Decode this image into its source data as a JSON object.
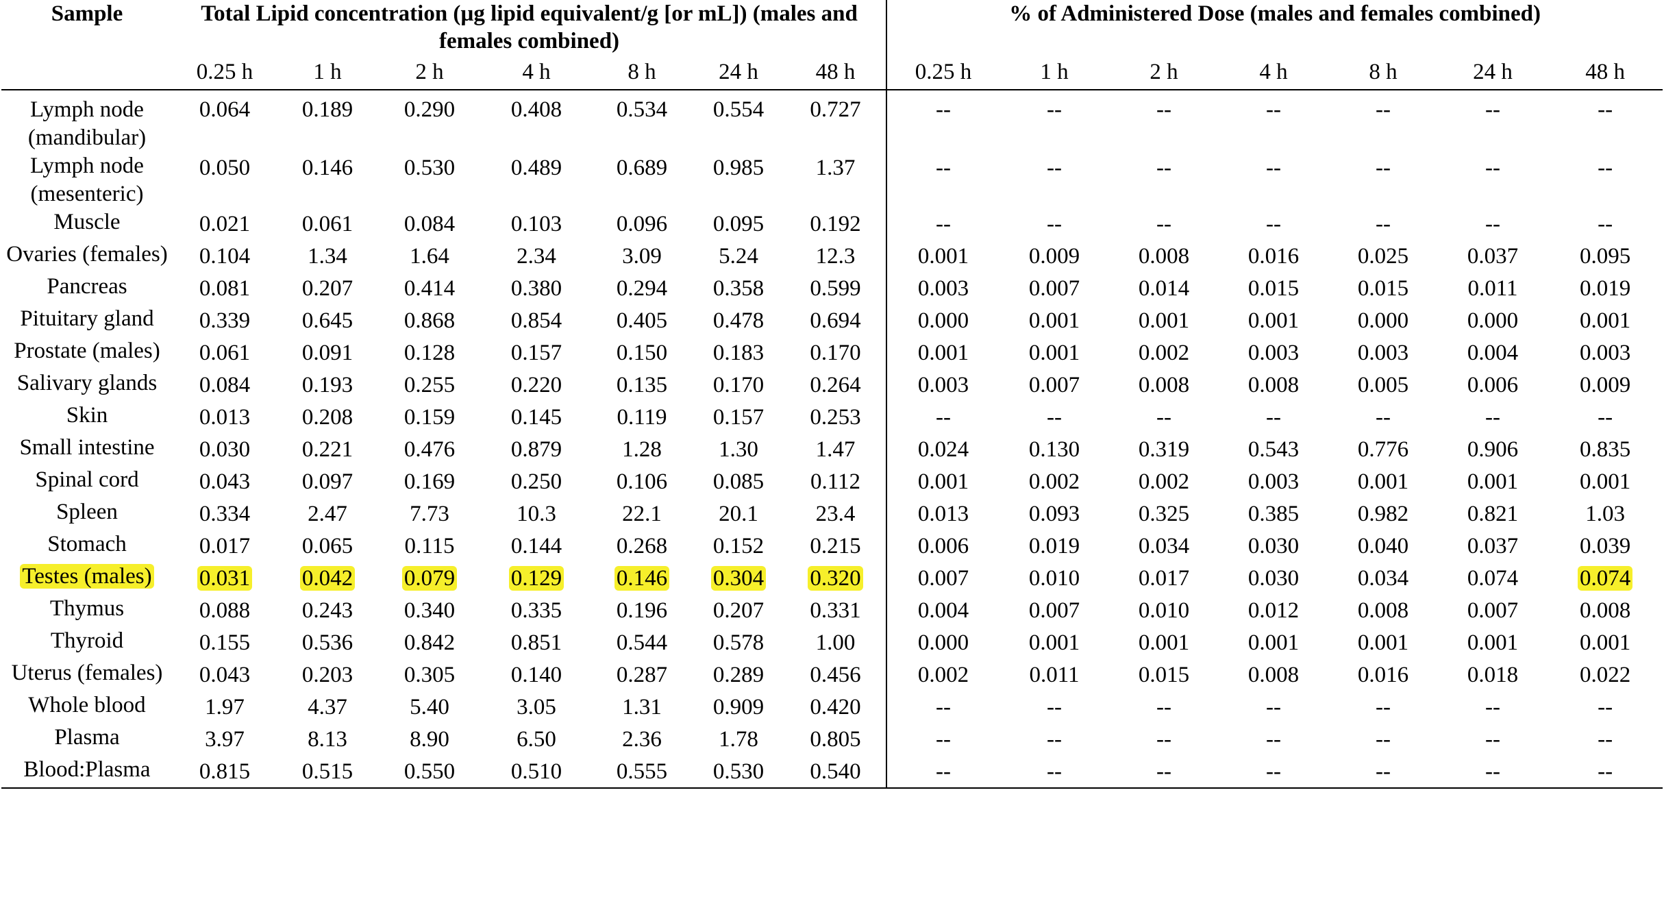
{
  "table": {
    "header": {
      "sample_label": "Sample",
      "group_left": "Total Lipid concentration (µg lipid equivalent/g [or mL]) (males and females combined)",
      "group_right": "% of Administered Dose (males and females combined)",
      "timepoints": [
        "0.25 h",
        "1 h",
        "2 h",
        "4 h",
        "8 h",
        "24 h",
        "48 h"
      ]
    },
    "highlight_color": "#f6ef2b",
    "rows": [
      {
        "sample": "Lymph node (mandibular)",
        "conc": [
          "0.064",
          "0.189",
          "0.290",
          "0.408",
          "0.534",
          "0.554",
          "0.727"
        ],
        "dose": [
          "--",
          "--",
          "--",
          "--",
          "--",
          "--",
          "--"
        ]
      },
      {
        "sample": "Lymph node (mesenteric)",
        "conc": [
          "0.050",
          "0.146",
          "0.530",
          "0.489",
          "0.689",
          "0.985",
          "1.37"
        ],
        "dose": [
          "--",
          "--",
          "--",
          "--",
          "--",
          "--",
          "--"
        ]
      },
      {
        "sample": "Muscle",
        "conc": [
          "0.021",
          "0.061",
          "0.084",
          "0.103",
          "0.096",
          "0.095",
          "0.192"
        ],
        "dose": [
          "--",
          "--",
          "--",
          "--",
          "--",
          "--",
          "--"
        ]
      },
      {
        "sample": "Ovaries (females)",
        "conc": [
          "0.104",
          "1.34",
          "1.64",
          "2.34",
          "3.09",
          "5.24",
          "12.3"
        ],
        "dose": [
          "0.001",
          "0.009",
          "0.008",
          "0.016",
          "0.025",
          "0.037",
          "0.095"
        ]
      },
      {
        "sample": "Pancreas",
        "conc": [
          "0.081",
          "0.207",
          "0.414",
          "0.380",
          "0.294",
          "0.358",
          "0.599"
        ],
        "dose": [
          "0.003",
          "0.007",
          "0.014",
          "0.015",
          "0.015",
          "0.011",
          "0.019"
        ]
      },
      {
        "sample": "Pituitary gland",
        "conc": [
          "0.339",
          "0.645",
          "0.868",
          "0.854",
          "0.405",
          "0.478",
          "0.694"
        ],
        "dose": [
          "0.000",
          "0.001",
          "0.001",
          "0.001",
          "0.000",
          "0.000",
          "0.001"
        ]
      },
      {
        "sample": "Prostate (males)",
        "conc": [
          "0.061",
          "0.091",
          "0.128",
          "0.157",
          "0.150",
          "0.183",
          "0.170"
        ],
        "dose": [
          "0.001",
          "0.001",
          "0.002",
          "0.003",
          "0.003",
          "0.004",
          "0.003"
        ]
      },
      {
        "sample": "Salivary glands",
        "conc": [
          "0.084",
          "0.193",
          "0.255",
          "0.220",
          "0.135",
          "0.170",
          "0.264"
        ],
        "dose": [
          "0.003",
          "0.007",
          "0.008",
          "0.008",
          "0.005",
          "0.006",
          "0.009"
        ]
      },
      {
        "sample": "Skin",
        "conc": [
          "0.013",
          "0.208",
          "0.159",
          "0.145",
          "0.119",
          "0.157",
          "0.253"
        ],
        "dose": [
          "--",
          "--",
          "--",
          "--",
          "--",
          "--",
          "--"
        ]
      },
      {
        "sample": "Small intestine",
        "conc": [
          "0.030",
          "0.221",
          "0.476",
          "0.879",
          "1.28",
          "1.30",
          "1.47"
        ],
        "dose": [
          "0.024",
          "0.130",
          "0.319",
          "0.543",
          "0.776",
          "0.906",
          "0.835"
        ]
      },
      {
        "sample": "Spinal cord",
        "conc": [
          "0.043",
          "0.097",
          "0.169",
          "0.250",
          "0.106",
          "0.085",
          "0.112"
        ],
        "dose": [
          "0.001",
          "0.002",
          "0.002",
          "0.003",
          "0.001",
          "0.001",
          "0.001"
        ]
      },
      {
        "sample": "Spleen",
        "conc": [
          "0.334",
          "2.47",
          "7.73",
          "10.3",
          "22.1",
          "20.1",
          "23.4"
        ],
        "dose": [
          "0.013",
          "0.093",
          "0.325",
          "0.385",
          "0.982",
          "0.821",
          "1.03"
        ]
      },
      {
        "sample": "Stomach",
        "conc": [
          "0.017",
          "0.065",
          "0.115",
          "0.144",
          "0.268",
          "0.152",
          "0.215"
        ],
        "dose": [
          "0.006",
          "0.019",
          "0.034",
          "0.030",
          "0.040",
          "0.037",
          "0.039"
        ]
      },
      {
        "sample": "Testes (males)",
        "conc": [
          "0.031",
          "0.042",
          "0.079",
          "0.129",
          "0.146",
          "0.304",
          "0.320"
        ],
        "dose": [
          "0.007",
          "0.010",
          "0.017",
          "0.030",
          "0.034",
          "0.074",
          "0.074"
        ],
        "highlight_sample": true,
        "highlight_conc": [
          0,
          1,
          2,
          3,
          4,
          5,
          6
        ],
        "highlight_dose": [
          6
        ]
      },
      {
        "sample": "Thymus",
        "conc": [
          "0.088",
          "0.243",
          "0.340",
          "0.335",
          "0.196",
          "0.207",
          "0.331"
        ],
        "dose": [
          "0.004",
          "0.007",
          "0.010",
          "0.012",
          "0.008",
          "0.007",
          "0.008"
        ]
      },
      {
        "sample": "Thyroid",
        "conc": [
          "0.155",
          "0.536",
          "0.842",
          "0.851",
          "0.544",
          "0.578",
          "1.00"
        ],
        "dose": [
          "0.000",
          "0.001",
          "0.001",
          "0.001",
          "0.001",
          "0.001",
          "0.001"
        ]
      },
      {
        "sample": "Uterus (females)",
        "conc": [
          "0.043",
          "0.203",
          "0.305",
          "0.140",
          "0.287",
          "0.289",
          "0.456"
        ],
        "dose": [
          "0.002",
          "0.011",
          "0.015",
          "0.008",
          "0.016",
          "0.018",
          "0.022"
        ]
      },
      {
        "sample": "Whole blood",
        "conc": [
          "1.97",
          "4.37",
          "5.40",
          "3.05",
          "1.31",
          "0.909",
          "0.420"
        ],
        "dose": [
          "--",
          "--",
          "--",
          "--",
          "--",
          "--",
          "--"
        ]
      },
      {
        "sample": "Plasma",
        "conc": [
          "3.97",
          "8.13",
          "8.90",
          "6.50",
          "2.36",
          "1.78",
          "0.805"
        ],
        "dose": [
          "--",
          "--",
          "--",
          "--",
          "--",
          "--",
          "--"
        ]
      },
      {
        "sample": "Blood:Plasma",
        "conc": [
          "0.815",
          "0.515",
          "0.550",
          "0.510",
          "0.555",
          "0.530",
          "0.540"
        ],
        "dose": [
          "--",
          "--",
          "--",
          "--",
          "--",
          "--",
          "--"
        ]
      }
    ]
  }
}
